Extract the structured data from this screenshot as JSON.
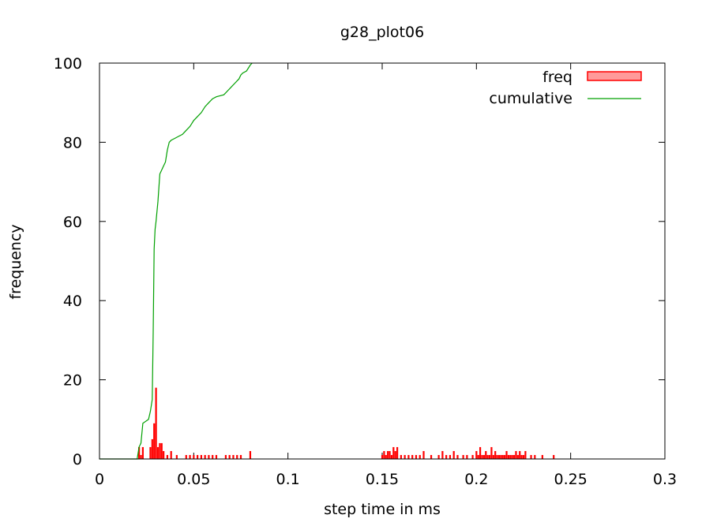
{
  "chart_data": {
    "type": "bar",
    "title": "g28_plot06",
    "xlabel": "step time in ms",
    "ylabel": "frequency",
    "xlim": [
      0,
      0.3
    ],
    "ylim": [
      0,
      100
    ],
    "x_ticks": [
      "0",
      "0.05",
      "0.1",
      "0.15",
      "0.2",
      "0.25",
      "0.3"
    ],
    "y_ticks": [
      "0",
      "20",
      "40",
      "60",
      "80",
      "100"
    ],
    "legend_position": "top-right",
    "grid": false,
    "colors": {
      "freq": "#ff0000",
      "freq_legend_fill": "#ff9a9a",
      "cumulative": "#00a000"
    },
    "series": [
      {
        "name": "freq",
        "type": "bar",
        "x": [
          0.021,
          0.022,
          0.023,
          0.027,
          0.028,
          0.029,
          0.03,
          0.031,
          0.032,
          0.033,
          0.034,
          0.036,
          0.038,
          0.041,
          0.046,
          0.048,
          0.05,
          0.052,
          0.054,
          0.056,
          0.058,
          0.06,
          0.062,
          0.067,
          0.069,
          0.071,
          0.073,
          0.075,
          0.08,
          0.15,
          0.151,
          0.152,
          0.153,
          0.154,
          0.155,
          0.156,
          0.157,
          0.158,
          0.16,
          0.162,
          0.164,
          0.166,
          0.168,
          0.17,
          0.172,
          0.176,
          0.18,
          0.182,
          0.184,
          0.186,
          0.188,
          0.19,
          0.193,
          0.195,
          0.198,
          0.2,
          0.201,
          0.202,
          0.203,
          0.204,
          0.205,
          0.206,
          0.207,
          0.208,
          0.209,
          0.21,
          0.211,
          0.212,
          0.213,
          0.214,
          0.215,
          0.216,
          0.217,
          0.218,
          0.219,
          0.22,
          0.221,
          0.222,
          0.223,
          0.224,
          0.225,
          0.226,
          0.229,
          0.231,
          0.235,
          0.241
        ],
        "values": [
          3,
          1,
          3,
          3,
          5,
          9,
          18,
          3,
          4,
          4,
          2,
          1,
          2,
          1,
          1,
          1,
          1,
          1,
          1,
          1,
          1,
          1,
          1,
          1,
          1,
          1,
          1,
          1,
          2,
          1,
          2,
          1,
          2,
          2,
          1,
          3,
          2,
          3,
          1,
          1,
          1,
          1,
          1,
          1,
          2,
          1,
          1,
          2,
          1,
          1,
          2,
          1,
          1,
          1,
          1,
          2,
          1,
          3,
          1,
          1,
          2,
          1,
          1,
          3,
          1,
          2,
          1,
          1,
          1,
          1,
          1,
          2,
          1,
          1,
          1,
          1,
          2,
          1,
          2,
          1,
          1,
          2,
          1,
          1,
          1,
          1
        ]
      },
      {
        "name": "cumulative",
        "type": "line",
        "x": [
          0.0,
          0.02,
          0.021,
          0.022,
          0.023,
          0.026,
          0.027,
          0.028,
          0.0285,
          0.029,
          0.0295,
          0.03,
          0.031,
          0.032,
          0.033,
          0.034,
          0.035,
          0.036,
          0.037,
          0.038,
          0.04,
          0.042,
          0.044,
          0.046,
          0.048,
          0.05,
          0.052,
          0.054,
          0.056,
          0.058,
          0.06,
          0.062,
          0.066,
          0.068,
          0.07,
          0.072,
          0.074,
          0.075,
          0.076,
          0.078,
          0.08,
          0.081
        ],
        "values": [
          0,
          0,
          3,
          4,
          9,
          10,
          12,
          15,
          32,
          53,
          58,
          60,
          65,
          72,
          73,
          74,
          75,
          78,
          80,
          80.5,
          81,
          81.5,
          82,
          83,
          84,
          85.5,
          86.5,
          87.5,
          89,
          90,
          91,
          91.5,
          92,
          93,
          94,
          95,
          96,
          97,
          97.5,
          98,
          99.5,
          100
        ]
      }
    ]
  }
}
